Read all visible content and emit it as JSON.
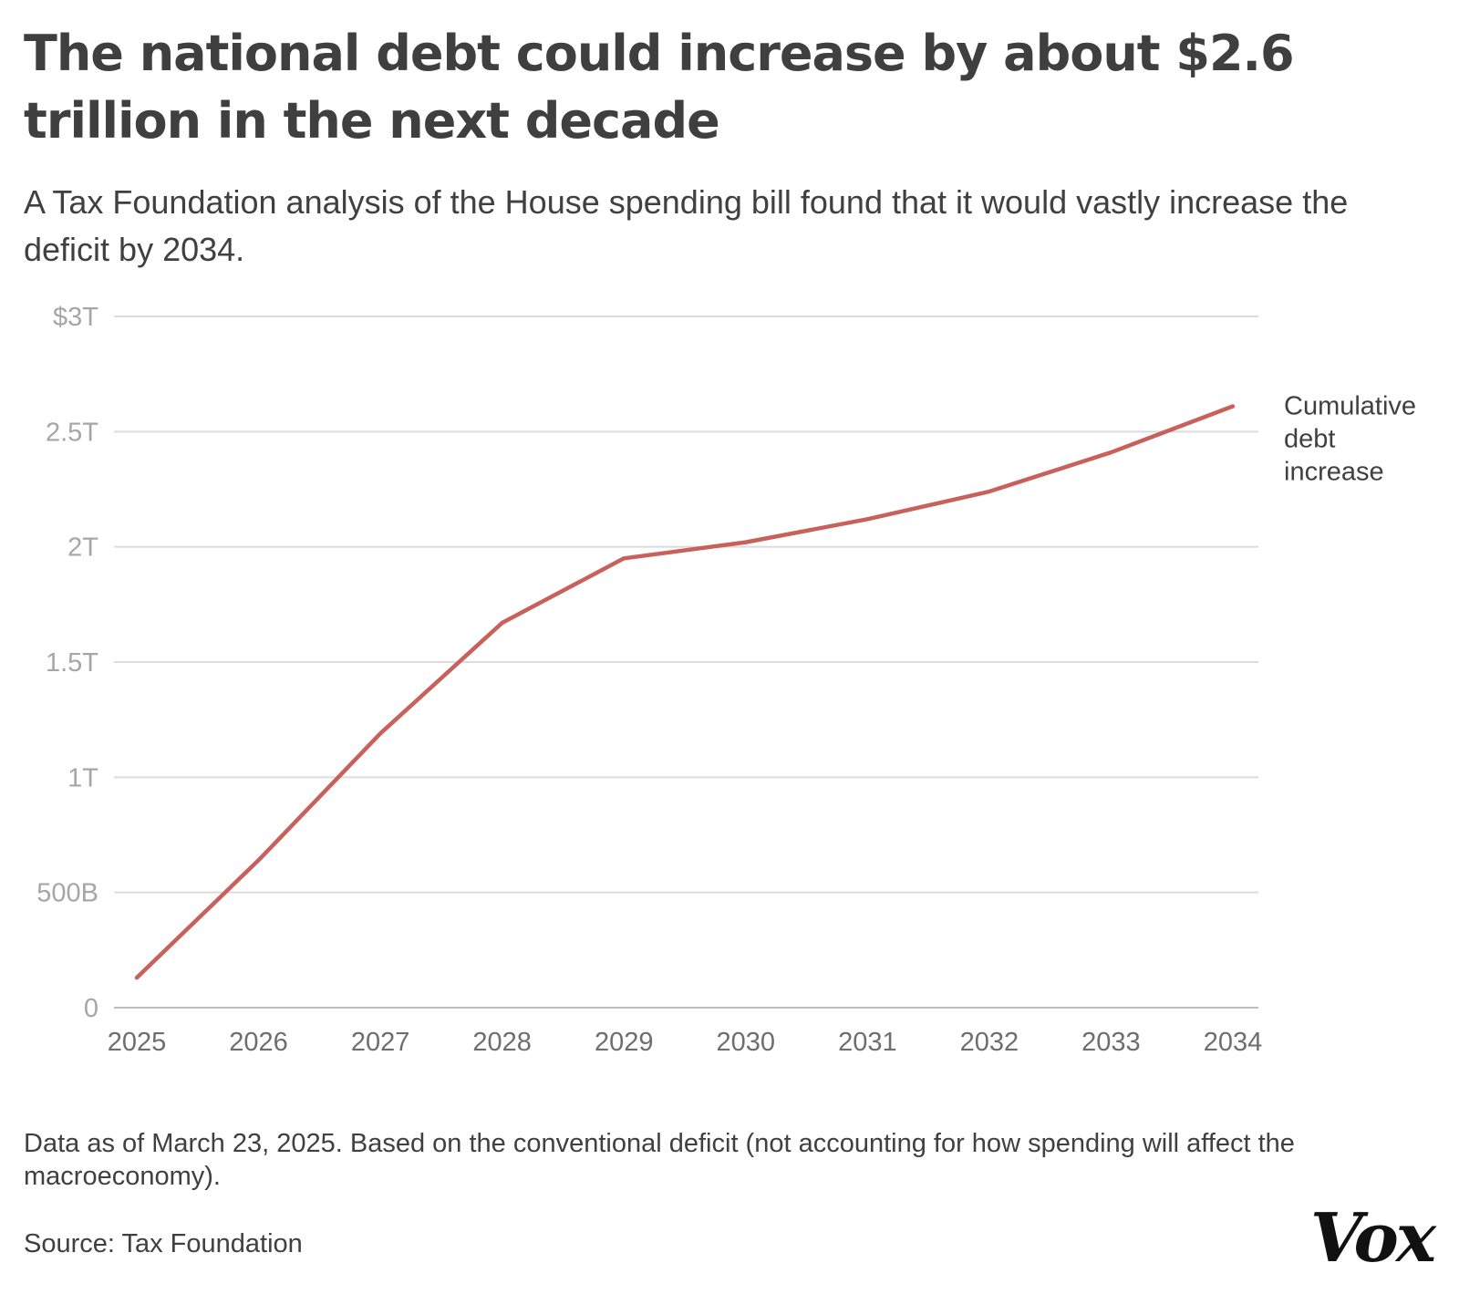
{
  "header": {
    "title": "The national debt could increase by about $2.6 trillion in the next decade",
    "subtitle": "A Tax Foundation analysis of the House spending bill found that it would vastly increase the deficit by 2034."
  },
  "footer": {
    "note": "Data as of March 23, 2025. Based on the conventional deficit (not accounting for how spending will affect the macroeconomy).",
    "source": "Source: Tax Foundation",
    "logo": "Vox"
  },
  "chart_data": {
    "type": "line",
    "x": [
      "2025",
      "2026",
      "2027",
      "2028",
      "2029",
      "2030",
      "2031",
      "2032",
      "2033",
      "2034"
    ],
    "series": [
      {
        "name": "Cumulative debt increase",
        "label_lines": [
          "Cumulative",
          "debt",
          "increase"
        ],
        "values": [
          0.13,
          0.64,
          1.19,
          1.67,
          1.95,
          2.02,
          2.12,
          2.24,
          2.41,
          2.61
        ],
        "color": "#c8605b"
      }
    ],
    "yticks": [
      0,
      0.5,
      1,
      1.5,
      2,
      2.5,
      3
    ],
    "ytick_labels": [
      "0",
      "500B",
      "1T",
      "1.5T",
      "2T",
      "2.5T",
      "$3T"
    ],
    "ylim": [
      0,
      3
    ],
    "xlabel": "",
    "ylabel": "",
    "grid": true,
    "colors": {
      "grid": "#dcdcdc",
      "axis": "#bdbdbd"
    }
  }
}
